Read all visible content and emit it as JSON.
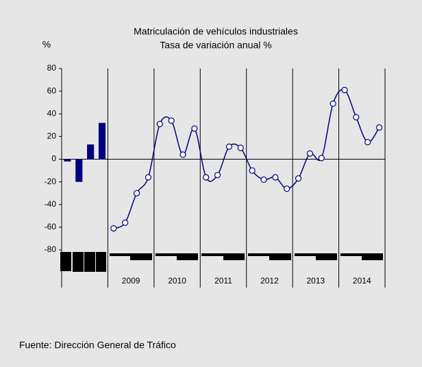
{
  "chart_data": {
    "type": "bar_line",
    "title": "Matriculación de vehículos industriales",
    "subtitle": "Tasa de variación anual %",
    "y_label": "%",
    "source": "Fuente: Dirección General de Tráfico",
    "categories": [
      null,
      null,
      null,
      null,
      null,
      null,
      null,
      null,
      null,
      null,
      null,
      null,
      null,
      null,
      null,
      null,
      null,
      null,
      null,
      null,
      null,
      null,
      null,
      null,
      null,
      null,
      null,
      null
    ],
    "groups": [
      "2009",
      "2010",
      "2011",
      "2012",
      "2013",
      "2014"
    ],
    "series": [
      {
        "type": "bar",
        "color": "#000080",
        "values": [
          -2,
          -20,
          13,
          32,
          null,
          null,
          null,
          null,
          null,
          null,
          null,
          null,
          null,
          null,
          null,
          null,
          null,
          null,
          null,
          null,
          null,
          null,
          null,
          null,
          null,
          null,
          null,
          null
        ]
      },
      {
        "type": "line",
        "color": "#000080",
        "values": [
          null,
          null,
          null,
          null,
          -61,
          -56,
          -30,
          -16,
          31,
          34,
          4,
          27,
          -16,
          -14,
          11,
          10,
          -10,
          -18,
          -16,
          -26,
          -17,
          5,
          1,
          49,
          61,
          37,
          15,
          28
        ]
      }
    ],
    "ylim": [
      -80,
      80
    ],
    "yticks": [
      -80,
      -60,
      -40,
      -20,
      0,
      20,
      40,
      60,
      80
    ]
  }
}
